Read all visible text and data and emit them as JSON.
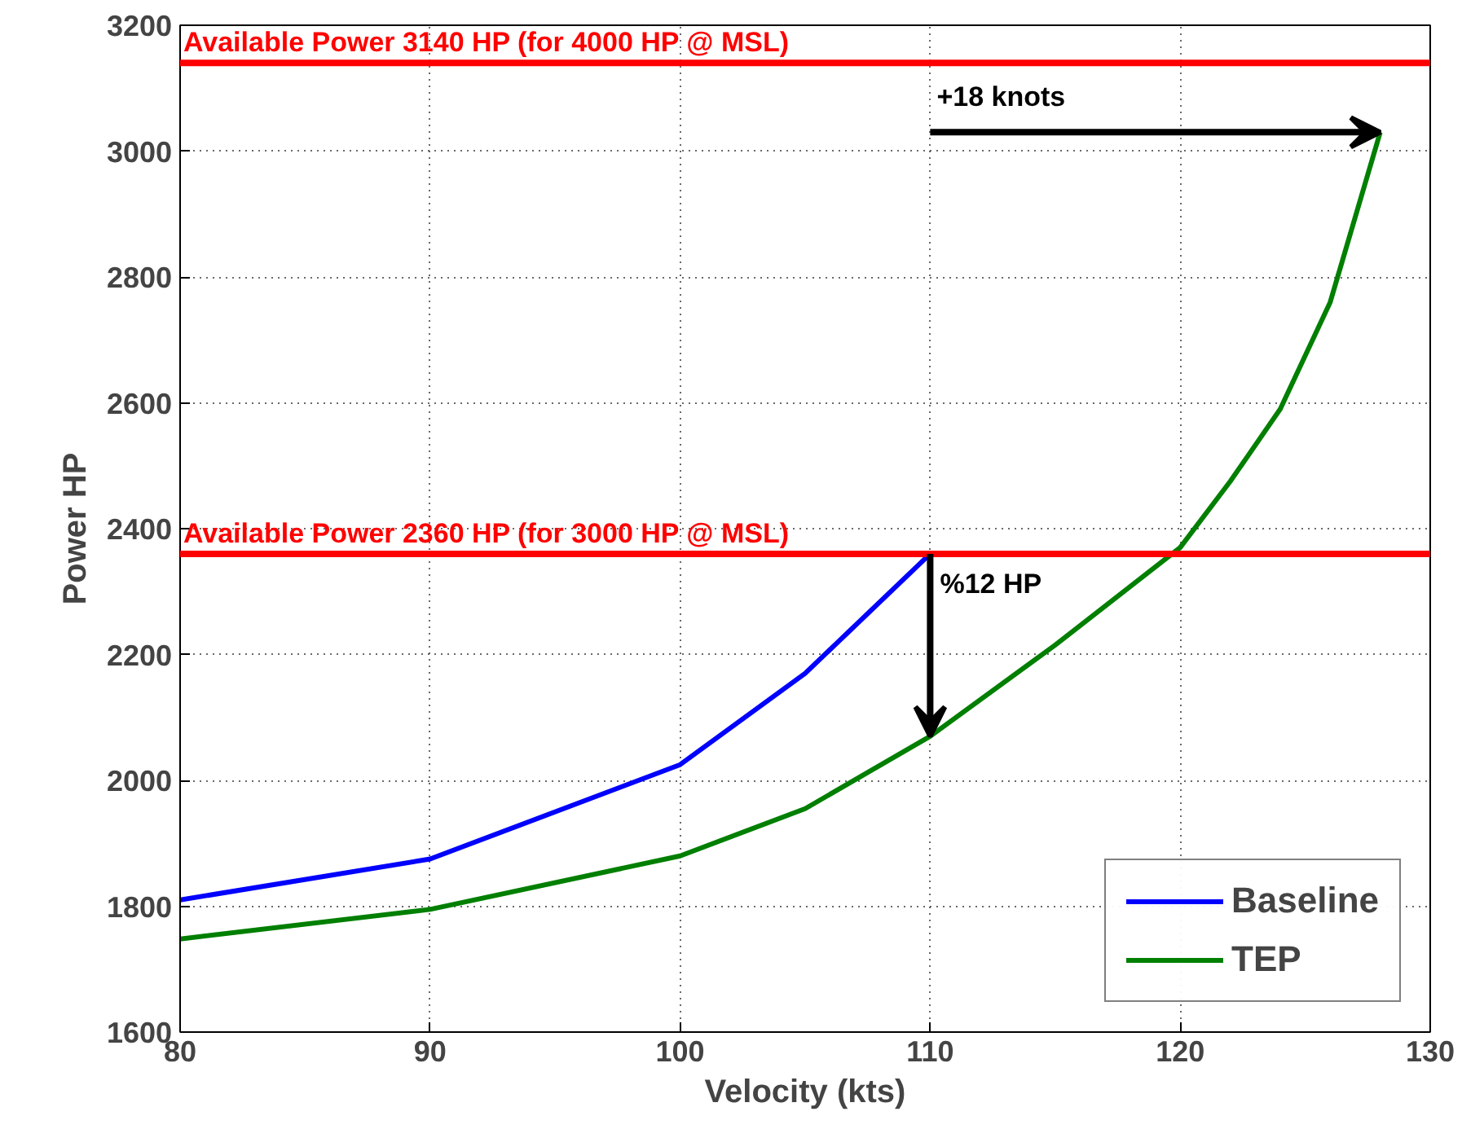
{
  "chart_data": {
    "type": "line",
    "xlabel": "Velocity (kts)",
    "ylabel": "Power HP",
    "xlim": [
      80,
      130
    ],
    "xticks": [
      80,
      90,
      100,
      110,
      120,
      130
    ],
    "ylim": [
      1600,
      3200
    ],
    "yticks": [
      1600,
      1800,
      2000,
      2200,
      2400,
      2600,
      2800,
      3000,
      3200
    ],
    "grid": true,
    "legend": "bottom right",
    "line_style": "solid",
    "marker": "none",
    "series": [
      {
        "name": "Baseline",
        "color": "#0000ff",
        "x": [
          80,
          90,
          100,
          105,
          110
        ],
        "values": [
          1810,
          1875,
          2025,
          2170,
          2360
        ]
      },
      {
        "name": "TEP",
        "color": "#007f00",
        "x": [
          80,
          90,
          100,
          105,
          110,
          115,
          120,
          122,
          124,
          126,
          128
        ],
        "values": [
          1748,
          1795,
          1880,
          1955,
          2070,
          2215,
          2370,
          2475,
          2590,
          2760,
          3030
        ]
      }
    ],
    "ref_lines": [
      {
        "axis": "y",
        "value": 3140,
        "label": "Available Power 3140 HP (for 4000 HP @ MSL)",
        "color": "#ff0000"
      },
      {
        "axis": "y",
        "value": 2360,
        "label": "Available Power 2360 HP (for 3000 HP @ MSL)",
        "color": "#ff0000"
      }
    ],
    "annotations": [
      {
        "text": "+18 knots",
        "x": 128,
        "y": 3030
      },
      {
        "text": "%12 HP",
        "x": 110,
        "y": 2070
      }
    ]
  }
}
